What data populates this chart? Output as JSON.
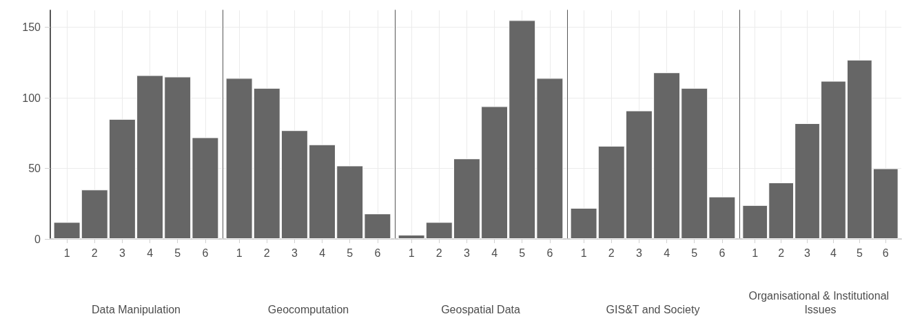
{
  "chart_data": [
    {
      "type": "bar",
      "xlabel": "Data Manipulation",
      "x": [
        1,
        2,
        3,
        4,
        5,
        6
      ],
      "values": [
        12,
        35,
        85,
        116,
        115,
        72
      ],
      "color": "#666666",
      "xlim": [
        0.4,
        6.6
      ],
      "xticks": [
        1,
        2,
        3,
        4,
        5,
        6
      ],
      "ylim": [
        0,
        162
      ],
      "yticks": [
        0,
        50,
        100,
        150
      ],
      "grid": true
    },
    {
      "type": "bar",
      "xlabel": "Geocomputation",
      "x": [
        1,
        2,
        3,
        4,
        5,
        6
      ],
      "values": [
        114,
        107,
        77,
        67,
        52,
        18
      ],
      "color": "#666666",
      "xlim": [
        0.4,
        6.6
      ],
      "xticks": [
        1,
        2,
        3,
        4,
        5,
        6
      ],
      "ylim": [
        0,
        162
      ],
      "yticks": [
        0,
        50,
        100,
        150
      ],
      "grid": true,
      "tick_labels": "x"
    },
    {
      "type": "bar",
      "xlabel": "Geospatial Data",
      "x": [
        1,
        2,
        3,
        4,
        5,
        6
      ],
      "values": [
        3,
        12,
        57,
        94,
        155,
        114
      ],
      "color": "#666666",
      "xlim": [
        0.4,
        6.6
      ],
      "xticks": [
        1,
        2,
        3,
        4,
        5,
        6
      ],
      "ylim": [
        0,
        162
      ],
      "yticks": [
        0,
        50,
        100,
        150
      ],
      "grid": true,
      "tick_labels": "x"
    },
    {
      "type": "bar",
      "xlabel": "GIS&T and Society",
      "x": [
        1,
        2,
        3,
        4,
        5,
        6
      ],
      "values": [
        22,
        66,
        91,
        118,
        107,
        30
      ],
      "color": "#666666",
      "xlim": [
        0.4,
        6.6
      ],
      "xticks": [
        1,
        2,
        3,
        4,
        5,
        6
      ],
      "ylim": [
        0,
        162
      ],
      "yticks": [
        0,
        50,
        100,
        150
      ],
      "grid": true,
      "tick_labels": "x"
    },
    {
      "type": "bar",
      "xlabel": "Organisational & Institutional Issues",
      "x": [
        1,
        2,
        3,
        4,
        5,
        6
      ],
      "values": [
        24,
        40,
        82,
        112,
        127,
        50
      ],
      "color": "#666666",
      "xlim": [
        0.4,
        6.6
      ],
      "xticks": [
        1,
        2,
        3,
        4,
        5,
        6
      ],
      "ylim": [
        0,
        162
      ],
      "yticks": [
        0,
        50,
        100,
        150
      ],
      "grid": true,
      "tick_labels": "x"
    }
  ]
}
